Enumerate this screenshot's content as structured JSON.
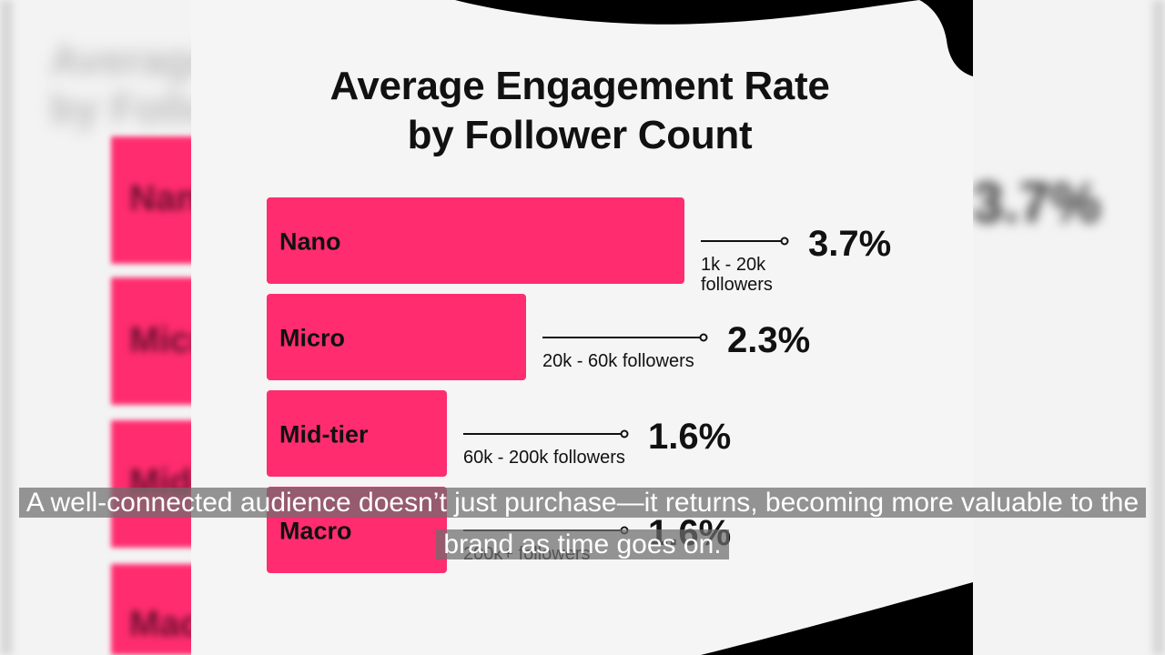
{
  "colors": {
    "bar": "#ff2d6f",
    "text": "#111111",
    "connector": "#111111",
    "caption_bg": "#6e6e6e",
    "caption_text": "#ffffff"
  },
  "caption": "A well-connected audience doesn’t just purchase—it returns, becoming more valuable to the brand as time goes on.",
  "chart_data": {
    "type": "bar",
    "orientation": "horizontal",
    "title": "Average Engagement Rate by Follower Count",
    "title_lines": [
      "Average Engagement Rate",
      "by Follower Count"
    ],
    "categories": [
      "Nano",
      "Micro",
      "Mid-tier",
      "Macro"
    ],
    "values": [
      3.7,
      2.3,
      1.6,
      1.6
    ],
    "value_labels": [
      "3.7%",
      "2.3%",
      "1.6%",
      "1.6%"
    ],
    "ranges": [
      [
        "1k - 20k",
        "followers"
      ],
      [
        "20k - 60k followers"
      ],
      [
        "60k - 200k followers"
      ],
      [
        "200k+ followers"
      ]
    ],
    "unit": "%",
    "grid": false,
    "legend": "none",
    "xlim": [
      0,
      3.7
    ]
  }
}
